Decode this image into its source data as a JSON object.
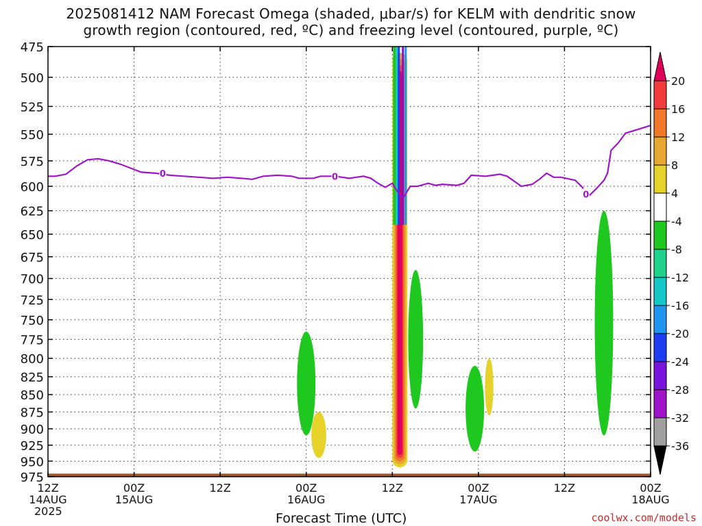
{
  "chart_data": {
    "type": "heatmap",
    "title": "2025081412 NAM Forecast Omega (shaded, μbar/s) for KELM with dendritic snow growth region (contoured, red, ºC) and freezing level (contoured, purple, ºC)",
    "title_lines": [
      "2025081412 NAM Forecast Omega (shaded, μbar/s) for KELM with dendritic snow",
      "growth region (contoured, red, ºC) and freezing level (contoured, purple, ºC)"
    ],
    "xlabel": "Forecast Time (UTC)",
    "ylabel": "",
    "ylim": [
      975,
      475
    ],
    "xlim_hours": [
      0,
      84
    ],
    "y_ticks": [
      475,
      500,
      525,
      550,
      575,
      600,
      625,
      650,
      675,
      700,
      725,
      750,
      775,
      800,
      825,
      850,
      875,
      900,
      925,
      950,
      975
    ],
    "x_ticks": [
      {
        "hour": 0,
        "lines": [
          "12Z",
          "14AUG",
          "2025"
        ]
      },
      {
        "hour": 12,
        "lines": [
          "00Z",
          "15AUG"
        ]
      },
      {
        "hour": 24,
        "lines": [
          "12Z"
        ]
      },
      {
        "hour": 36,
        "lines": [
          "00Z",
          "16AUG"
        ]
      },
      {
        "hour": 48,
        "lines": [
          "12Z"
        ]
      },
      {
        "hour": 60,
        "lines": [
          "00Z",
          "17AUG"
        ]
      },
      {
        "hour": 72,
        "lines": [
          "12Z"
        ]
      },
      {
        "hour": 84,
        "lines": [
          "00Z",
          "18AUG"
        ]
      }
    ],
    "grid": true,
    "colorbar": {
      "placement": "right",
      "labels": [
        "20",
        "16",
        "12",
        "8",
        "4",
        "-4",
        "-8",
        "-12",
        "-16",
        "-20",
        "-24",
        "-28",
        "-32",
        "-36"
      ],
      "colors": [
        "#e0005a",
        "#f03c3c",
        "#f0782a",
        "#e6a830",
        "#e6d22a",
        "#ffffff",
        "#1ec81e",
        "#1ed28c",
        "#14c8c8",
        "#1e96f0",
        "#1e3cf0",
        "#7814dc",
        "#a014c8",
        "#a0a0a0",
        "#000000"
      ]
    },
    "freezing_level": {
      "label": "0",
      "color": "#a014c8",
      "points": [
        [
          0,
          590
        ],
        [
          1,
          590
        ],
        [
          2.5,
          588
        ],
        [
          4,
          580
        ],
        [
          5.5,
          574
        ],
        [
          7,
          573
        ],
        [
          8.5,
          575
        ],
        [
          10,
          578
        ],
        [
          11.5,
          582
        ],
        [
          13,
          586
        ],
        [
          15,
          587
        ],
        [
          17,
          589
        ],
        [
          19,
          590
        ],
        [
          21,
          591
        ],
        [
          23,
          592
        ],
        [
          25,
          591
        ],
        [
          27,
          592
        ],
        [
          28.5,
          593
        ],
        [
          30,
          590
        ],
        [
          32,
          589
        ],
        [
          34,
          590
        ],
        [
          35,
          592
        ],
        [
          37,
          592
        ],
        [
          38,
          590
        ],
        [
          40,
          590
        ],
        [
          42,
          592
        ],
        [
          44,
          590
        ],
        [
          45,
          592
        ],
        [
          46,
          597
        ],
        [
          47,
          601
        ],
        [
          48,
          597
        ],
        [
          48.6,
          604
        ],
        [
          49,
          608
        ],
        [
          49.5,
          612
        ],
        [
          50.5,
          600
        ],
        [
          51.5,
          600
        ],
        [
          53,
          597
        ],
        [
          54,
          599
        ],
        [
          55,
          598
        ],
        [
          57,
          599
        ],
        [
          58,
          597
        ],
        [
          59,
          589
        ],
        [
          61,
          590
        ],
        [
          62,
          589
        ],
        [
          63,
          588
        ],
        [
          64,
          590
        ],
        [
          65,
          595
        ],
        [
          66,
          600
        ],
        [
          67.5,
          598
        ],
        [
          68.5,
          593
        ],
        [
          69.5,
          587
        ],
        [
          70.5,
          591
        ],
        [
          71.5,
          591
        ],
        [
          73.5,
          594
        ],
        [
          74.5,
          601
        ],
        [
          75,
          608
        ],
        [
          75.5,
          609
        ],
        [
          76.5,
          602
        ],
        [
          77.5,
          594
        ],
        [
          78,
          587
        ],
        [
          78.5,
          565
        ],
        [
          79.5,
          558
        ],
        [
          80.5,
          549
        ],
        [
          82,
          546
        ],
        [
          84,
          542
        ]
      ],
      "contour_label_hours": [
        16,
        40,
        75
      ]
    },
    "ground_level_hpa": 970,
    "omega_features": [
      {
        "name": "core",
        "value": 20,
        "x": [
          48.5,
          49.6
        ],
        "p": [
          480,
          950
        ]
      },
      {
        "name": "ascent",
        "value": -8,
        "x": [
          35,
          37
        ],
        "p": [
          765,
          910
        ]
      },
      {
        "name": "ascent",
        "value": -8,
        "x": [
          58.5,
          60.5
        ],
        "p": [
          810,
          935
        ]
      },
      {
        "name": "ascent",
        "value": -8,
        "x": [
          76.5,
          78.5
        ],
        "p": [
          625,
          910
        ]
      },
      {
        "name": "ascent",
        "value": -8,
        "x": [
          50.5,
          52
        ],
        "p": [
          690,
          870
        ]
      },
      {
        "name": "descent",
        "value": 4,
        "x": [
          37,
          38.5
        ],
        "p": [
          875,
          945
        ]
      },
      {
        "name": "descent",
        "value": 4,
        "x": [
          61.2,
          61.8
        ],
        "p": [
          800,
          880
        ]
      }
    ]
  },
  "credit": "coolwx.com/models"
}
